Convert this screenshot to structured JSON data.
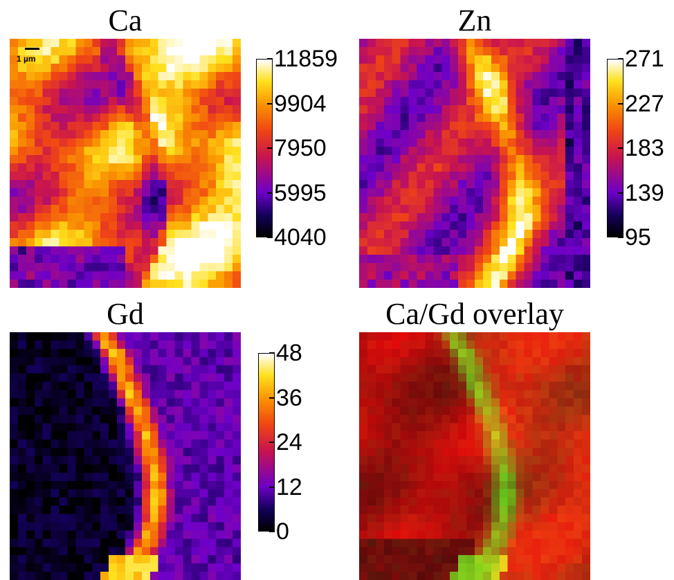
{
  "panels": {
    "ca": {
      "title": "Ca",
      "colormap": "hot",
      "scalebar": "1 µm",
      "ticks": [
        "11859",
        "9904",
        "7950",
        "5995",
        "4040"
      ]
    },
    "zn": {
      "title": "Zn",
      "colormap": "hot",
      "ticks": [
        "271",
        "227",
        "183",
        "139",
        "95"
      ]
    },
    "gd": {
      "title": "Gd",
      "colormap": "hot",
      "ticks": [
        "48",
        "36",
        "24",
        "12",
        "0"
      ]
    },
    "overlay": {
      "title": "Ca/Gd overlay",
      "colors": {
        "ca": "#e00000",
        "gd": "#c8ff20"
      }
    }
  }
}
